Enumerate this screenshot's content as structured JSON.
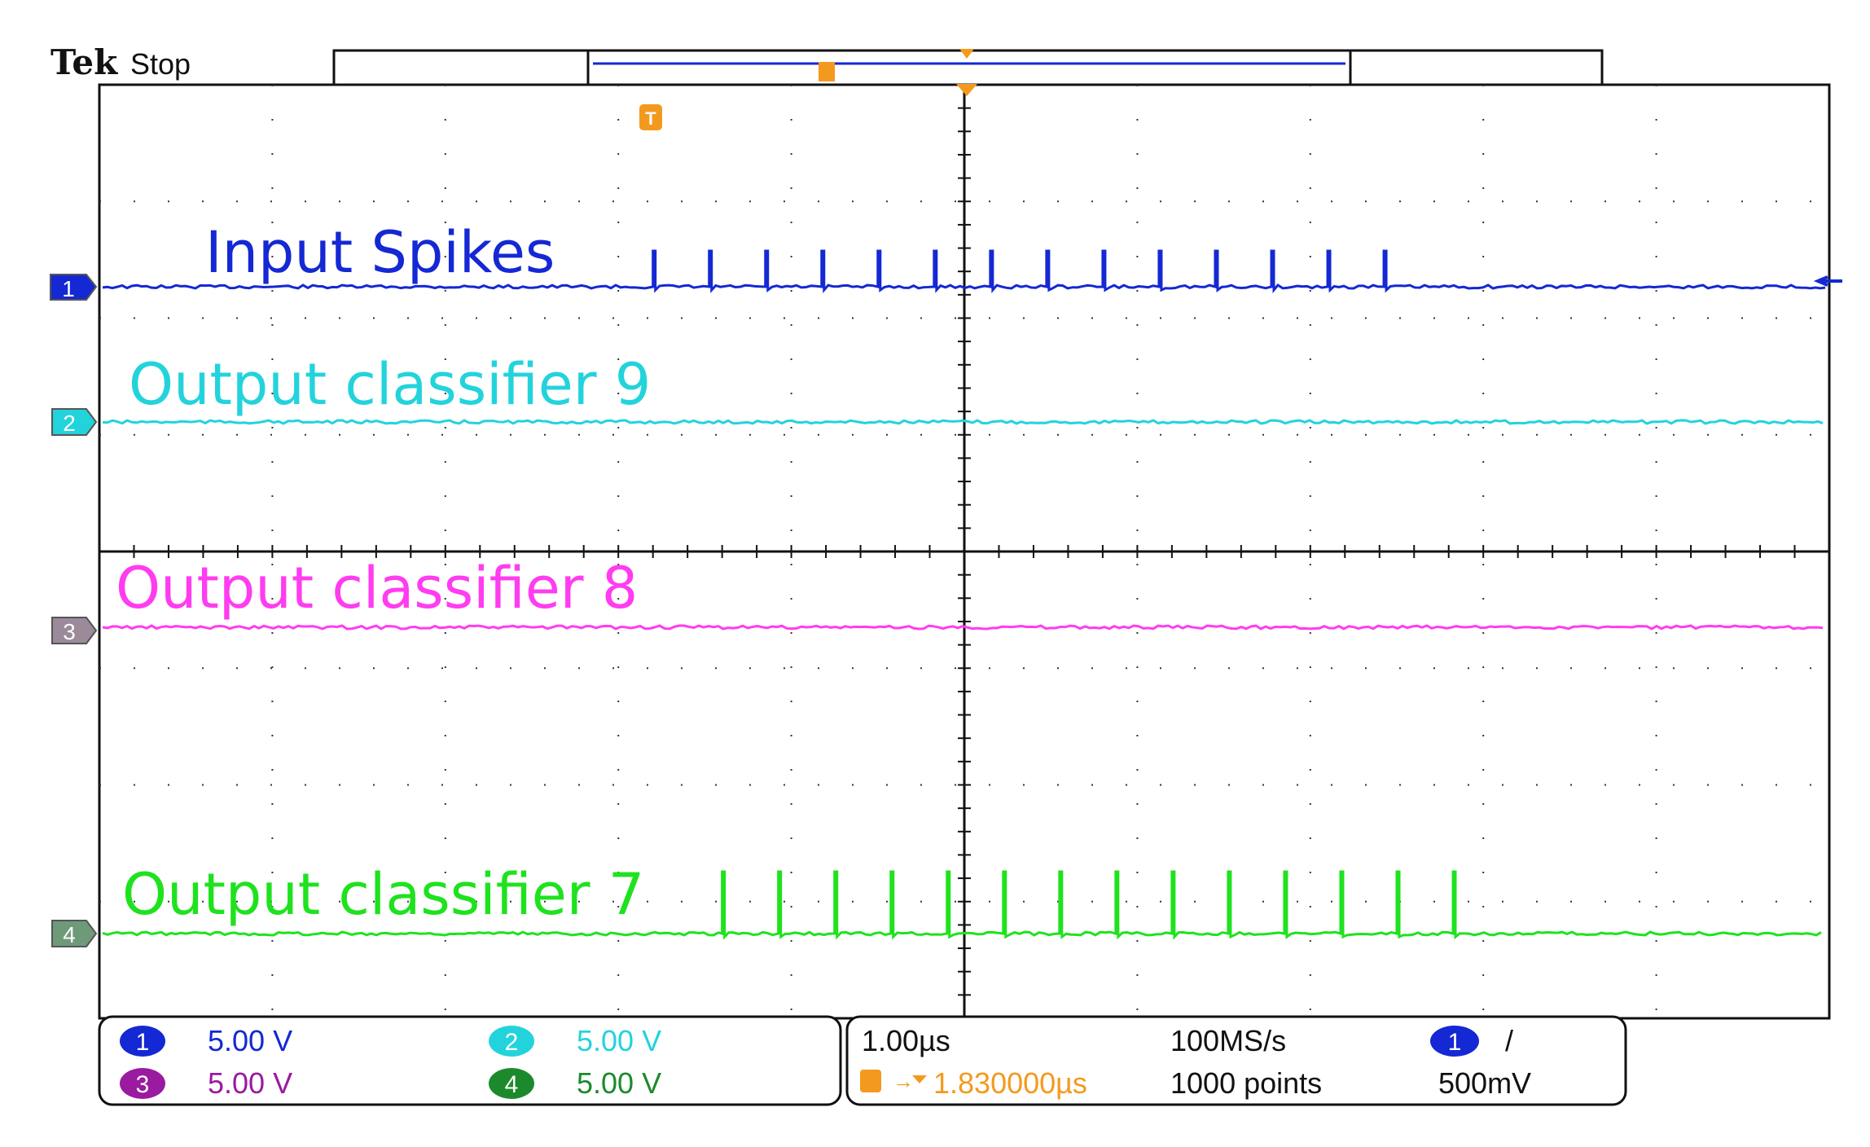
{
  "header": {
    "brand": "Tek",
    "run_state": "Stop"
  },
  "colors": {
    "ch1": "#1428d4",
    "ch2": "#23d3dc",
    "ch3": "#ff3cf0",
    "ch4": "#1fe21f",
    "ch3_badge": "#9a1aa0",
    "ch4_badge": "#1c8a2c",
    "trigger": "#f39a1e",
    "grid": "#000000"
  },
  "graticule": {
    "h_divisions": 10,
    "v_divisions": 8
  },
  "traces": [
    {
      "channel": "1",
      "label": "Input Spikes",
      "color_key": "ch1",
      "spikes": 14,
      "spike_start_div": 3.2,
      "spike_step_div": 0.325,
      "gap_after": 6
    },
    {
      "channel": "2",
      "label": "Output classifier 9",
      "color_key": "ch2",
      "spikes": 0
    },
    {
      "channel": "3",
      "label": "Output classifier 8",
      "color_key": "ch3",
      "spikes": 0
    },
    {
      "channel": "4",
      "label": "Output classifier 7",
      "color_key": "ch4",
      "spikes": 14,
      "spike_start_div": 3.6,
      "spike_step_div": 0.325,
      "gap_after": 5
    }
  ],
  "status": {
    "channels": [
      {
        "num": "1",
        "scale": "5.00 V",
        "color_key": "ch1"
      },
      {
        "num": "2",
        "scale": "5.00 V",
        "color_key": "ch2"
      },
      {
        "num": "3",
        "scale": "5.00 V",
        "color_key": "ch3_badge"
      },
      {
        "num": "4",
        "scale": "5.00 V",
        "color_key": "ch4_badge"
      }
    ],
    "timebase": "1.00µs",
    "sample_rate": "100MS/s",
    "trigger_position": "1.830000µs",
    "record_length": "1000 points",
    "trigger_source": "1",
    "trigger_slope": "/",
    "trigger_level": "500mV"
  },
  "icons": {
    "trigger_marker": "T",
    "channel_marker": "arrow-tag-icon",
    "level_marker": "left-arrow-icon"
  }
}
